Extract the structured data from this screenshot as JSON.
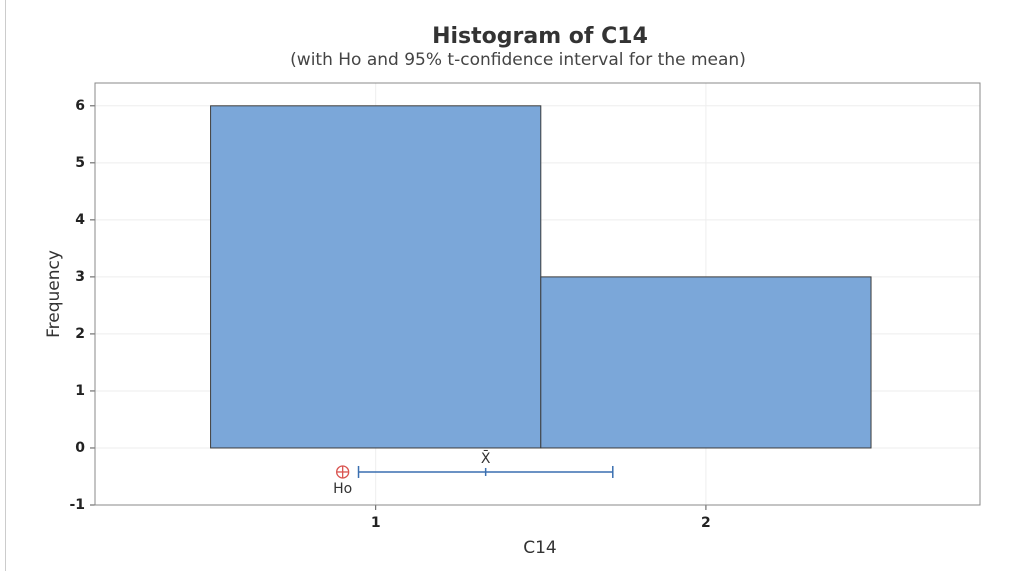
{
  "chart_data": {
    "type": "histogram",
    "title": "Histogram of C14",
    "subtitle": "(with Ho and 95% t-confidence interval for the mean)",
    "x_label": "C14",
    "y_label": "Frequency",
    "bins": [
      0.5,
      1.5,
      2.5
    ],
    "values": [
      6,
      3
    ],
    "color": "#7ba7d9",
    "xlim": [
      0.15,
      2.83
    ],
    "ylim": [
      -1,
      6.4
    ],
    "xticks": [
      1,
      2
    ],
    "yticks": [
      -1,
      0,
      1,
      2,
      3,
      4,
      5,
      6
    ],
    "grid": true,
    "interval": {
      "ho": 0.9,
      "ho_label": "Ho",
      "mean": 1.333,
      "mean_label": "X̄",
      "lower": 0.948,
      "upper": 1.718,
      "color": "#3a6fb0",
      "ho_color": "#d9534f"
    }
  }
}
